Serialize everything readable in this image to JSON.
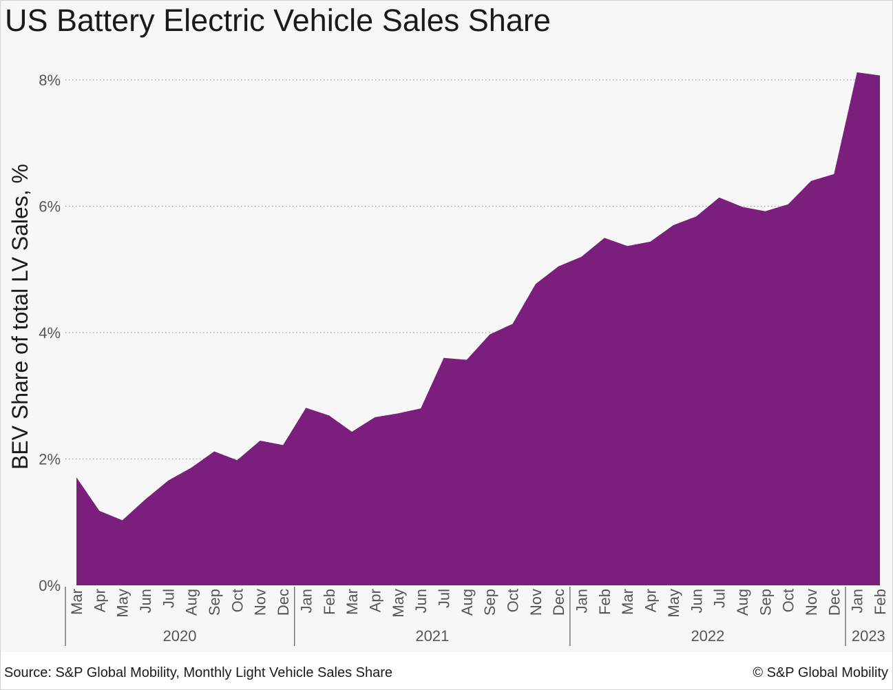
{
  "title": "US Battery Electric Vehicle Sales Share",
  "source": "Source: S&P Global Mobility, Monthly Light Vehicle Sales Share",
  "copyright": "© S&P Global Mobility",
  "colors": {
    "area": "#7a1f7c",
    "grid": "#9a9a9a",
    "text": "#555555",
    "background": "#f7f7f7"
  },
  "chart_data": {
    "type": "area",
    "title": "US Battery Electric Vehicle Sales Share",
    "ylabel": "BEV Share of total LV Sales, %",
    "ylim": [
      0,
      8
    ],
    "yticks": [
      0,
      2,
      4,
      6,
      8
    ],
    "ytick_labels": [
      "0%",
      "2%",
      "4%",
      "6%",
      "8%"
    ],
    "grid": "horizontal dotted",
    "x": [
      "Mar",
      "Apr",
      "May",
      "Jun",
      "Jul",
      "Aug",
      "Sep",
      "Oct",
      "Nov",
      "Dec",
      "Jan",
      "Feb",
      "Mar",
      "Apr",
      "May",
      "Jun",
      "Jul",
      "Aug",
      "Sep",
      "Oct",
      "Nov",
      "Dec",
      "Jan",
      "Feb",
      "Mar",
      "Apr",
      "May",
      "Jun",
      "Jul",
      "Aug",
      "Sep",
      "Oct",
      "Nov",
      "Dec",
      "Jan",
      "Feb"
    ],
    "years": [
      {
        "label": "2020",
        "start": 0,
        "end": 9
      },
      {
        "label": "2021",
        "start": 10,
        "end": 21
      },
      {
        "label": "2022",
        "start": 22,
        "end": 33
      },
      {
        "label": "2023",
        "start": 34,
        "end": 35
      }
    ],
    "values": [
      1.71,
      1.18,
      1.03,
      1.36,
      1.66,
      1.86,
      2.12,
      1.98,
      2.29,
      2.22,
      2.81,
      2.69,
      2.43,
      2.66,
      2.72,
      2.8,
      3.6,
      3.57,
      3.97,
      4.14,
      4.77,
      5.05,
      5.2,
      5.5,
      5.37,
      5.44,
      5.7,
      5.84,
      6.14,
      5.99,
      5.92,
      6.03,
      6.4,
      6.51,
      8.12,
      8.07
    ]
  }
}
